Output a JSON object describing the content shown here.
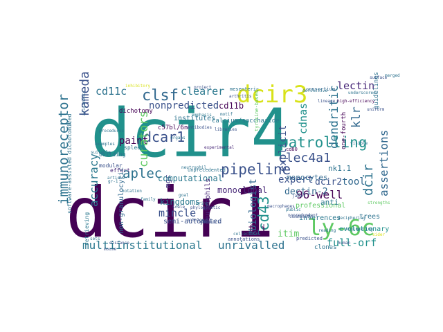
{
  "cloud": {
    "words": [
      {
        "text": "dcir4",
        "color": "#21918c"
      },
      {
        "text": "dcir1",
        "color": "#440154"
      },
      {
        "text": "dcir3",
        "color": "#d8e219"
      },
      {
        "text": "ly-6c",
        "color": "#5ec962"
      },
      {
        "text": "immunoreceptor",
        "color": "#2c728e"
      },
      {
        "text": "kameda",
        "color": "#3b528b"
      },
      {
        "text": "cd11c",
        "color": "#2c728e"
      },
      {
        "text": "clsf",
        "color": "#31688e"
      },
      {
        "text": "clearer",
        "color": "#2a788e"
      },
      {
        "text": "nonpredicted",
        "color": "#3b528b"
      },
      {
        "text": "dcar1",
        "color": "#3b528b"
      },
      {
        "text": "paint",
        "color": "#440154"
      },
      {
        "text": "aplec",
        "color": "#2c728e"
      },
      {
        "text": "curators",
        "color": "#5ec962"
      },
      {
        "text": "pipeline",
        "color": "#3b528b"
      },
      {
        "text": "patrolling",
        "color": "#21918c"
      },
      {
        "text": "clec4a1",
        "color": "#3b528b"
      },
      {
        "text": "dendritic",
        "color": "#2c728e"
      },
      {
        "text": "klr",
        "color": "#31688e"
      },
      {
        "text": "lectin",
        "color": "#482878"
      },
      {
        "text": "cdnas",
        "color": "#21918c"
      },
      {
        "text": "explicit",
        "color": "#3b528b"
      },
      {
        "text": "expert",
        "color": "#3b528b"
      },
      {
        "text": "dcir",
        "color": "#2c728e"
      },
      {
        "text": "dcir2",
        "color": "#3b528b"
      },
      {
        "text": "tool",
        "color": "#31688e"
      },
      {
        "text": "assertions",
        "color": "#31688e"
      },
      {
        "text": "accuracy",
        "color": "#2a788e"
      },
      {
        "text": "mincle",
        "color": "#3b528b"
      },
      {
        "text": "mgc",
        "color": "#443983"
      },
      {
        "text": "cd43",
        "color": "#21918c"
      },
      {
        "text": "biologist",
        "color": "#31688e"
      },
      {
        "text": "flj",
        "color": "#440154"
      },
      {
        "text": "96-well",
        "color": "#440154"
      },
      {
        "text": "multiinstitutional",
        "color": "#2a788e"
      },
      {
        "text": "unrivalled",
        "color": "#2c728e"
      },
      {
        "text": "full-orf",
        "color": "#21918c"
      },
      {
        "text": "itim",
        "color": "#5ec962"
      },
      {
        "text": "cd11b",
        "color": "#440154"
      },
      {
        "text": "dectin-2",
        "color": "#31688e"
      },
      {
        "text": "nk1.1",
        "color": "#2c728e"
      },
      {
        "text": "monocytes",
        "color": "#31688e"
      },
      {
        "text": "computational",
        "color": "#2a788e"
      },
      {
        "text": "kingdoms",
        "color": "#2a788e"
      },
      {
        "text": "monoclonal",
        "color": "#482878"
      },
      {
        "text": "neutrophils",
        "color": "#482878"
      },
      {
        "text": "semi-automated",
        "color": "#3b528b"
      },
      {
        "text": "professional",
        "color": "#5ec962"
      },
      {
        "text": "anti",
        "color": "#2a788e"
      },
      {
        "text": "evolutionary",
        "color": "#21918c"
      },
      {
        "text": "trees",
        "color": "#2c728e"
      },
      {
        "text": "mcl",
        "color": "#2c728e"
      },
      {
        "text": "non-granulocytic",
        "color": "#31688e"
      },
      {
        "text": "software-assisted dichotomized",
        "color": "#2c728e"
      },
      {
        "text": "institutes",
        "color": "#2c728e"
      },
      {
        "text": "calcium/saccharide",
        "color": "#2a788e"
      },
      {
        "text": "c57bl/6n",
        "color": "#440154"
      },
      {
        "text": "mesenteric",
        "color": "#2c728e"
      },
      {
        "text": "dichotomy",
        "color": "#440154"
      },
      {
        "text": "guidelines",
        "color": "#2c728e"
      },
      {
        "text": "inferences",
        "color": "#2a788e"
      },
      {
        "text": "clones",
        "color": "#2c728e"
      },
      {
        "text": "spleen",
        "color": "#2a788e"
      },
      {
        "text": "retrieving",
        "color": "#2a788e"
      },
      {
        "text": "building",
        "color": "#2c728e"
      },
      {
        "text": "modular",
        "color": "#3b528b"
      },
      {
        "text": "effort",
        "color": "#482878"
      },
      {
        "text": "cd80",
        "color": "#440154"
      },
      {
        "text": "macrophages",
        "color": "#3b528b"
      },
      {
        "text": "annotations",
        "color": "#3b528b"
      },
      {
        "text": "collection",
        "color": "#2c728e"
      },
      {
        "text": "predicted",
        "color": "#3b528b"
      },
      {
        "text": "nonredundant",
        "color": "#3b528b"
      },
      {
        "text": "community",
        "color": "#3b528b"
      },
      {
        "text": "japan",
        "color": "#3b528b"
      },
      {
        "text": "consortium",
        "color": "#31688e"
      },
      {
        "text": "examples",
        "color": "#2c728e"
      },
      {
        "text": "alignments",
        "color": "#31688e"
      },
      {
        "text": "unprecedented",
        "color": "#2c728e"
      },
      {
        "text": "libraries",
        "color": "#3b528b"
      },
      {
        "text": "experimental",
        "color": "#482878"
      },
      {
        "text": "antibodies",
        "color": "#3b528b"
      },
      {
        "text": "bring",
        "color": "#2a788e"
      },
      {
        "text": "phylogenetic",
        "color": "#3b528b"
      },
      {
        "text": "ontology",
        "color": "#3b528b"
      },
      {
        "text": "procedures",
        "color": "#2c728e"
      },
      {
        "text": "article",
        "color": "#2c728e"
      },
      {
        "text": "notation",
        "color": "#2c728e"
      },
      {
        "text": "engineering",
        "color": "#2c728e"
      },
      {
        "text": "strengths",
        "color": "#5ec962"
      },
      {
        "text": "reading",
        "color": "#2c728e"
      },
      {
        "text": "high-efficiency",
        "color": "#440154"
      },
      {
        "text": "genomics",
        "color": "#3b528b"
      },
      {
        "text": "emphasis",
        "color": "#2a788e"
      },
      {
        "text": "organs",
        "color": "#2c728e"
      },
      {
        "text": "family",
        "color": "#2c728e"
      },
      {
        "text": "scale",
        "color": "#3b528b"
      },
      {
        "text": "inhibitory",
        "color": "#d8e219"
      },
      {
        "text": "one-fourth",
        "color": "#440154"
      },
      {
        "text": "tyrosine-based",
        "color": "#5ec962"
      },
      {
        "text": "motif",
        "color": "#2c728e"
      },
      {
        "text": "neutrophil",
        "color": "#2c728e"
      },
      {
        "text": "suitable",
        "color": "#2c728e"
      },
      {
        "text": "sider",
        "color": "#d8e219"
      },
      {
        "text": "public",
        "color": "#2c728e"
      },
      {
        "text": "sets",
        "color": "#2c728e"
      },
      {
        "text": "gr-1",
        "color": "#2c728e"
      },
      {
        "text": "lineage",
        "color": "#3b528b"
      },
      {
        "text": "definitive",
        "color": "#2c728e"
      },
      {
        "text": "deciphering",
        "color": "#2c728e"
      },
      {
        "text": "arthritis",
        "color": "#3b528b"
      },
      {
        "text": "underscored",
        "color": "#2c728e"
      },
      {
        "text": "merged",
        "color": "#2c728e"
      },
      {
        "text": "project",
        "color": "#3b528b"
      },
      {
        "text": "uniform",
        "color": "#3b528b"
      },
      {
        "text": "goal",
        "color": "#2c728e"
      },
      {
        "text": "distance",
        "color": "#3b528b"
      },
      {
        "text": "mouse",
        "color": "#3b528b"
      },
      {
        "text": "surface",
        "color": "#3b528b"
      },
      {
        "text": "visible",
        "color": "#2c728e"
      },
      {
        "text": "human",
        "color": "#3b528b"
      }
    ]
  }
}
